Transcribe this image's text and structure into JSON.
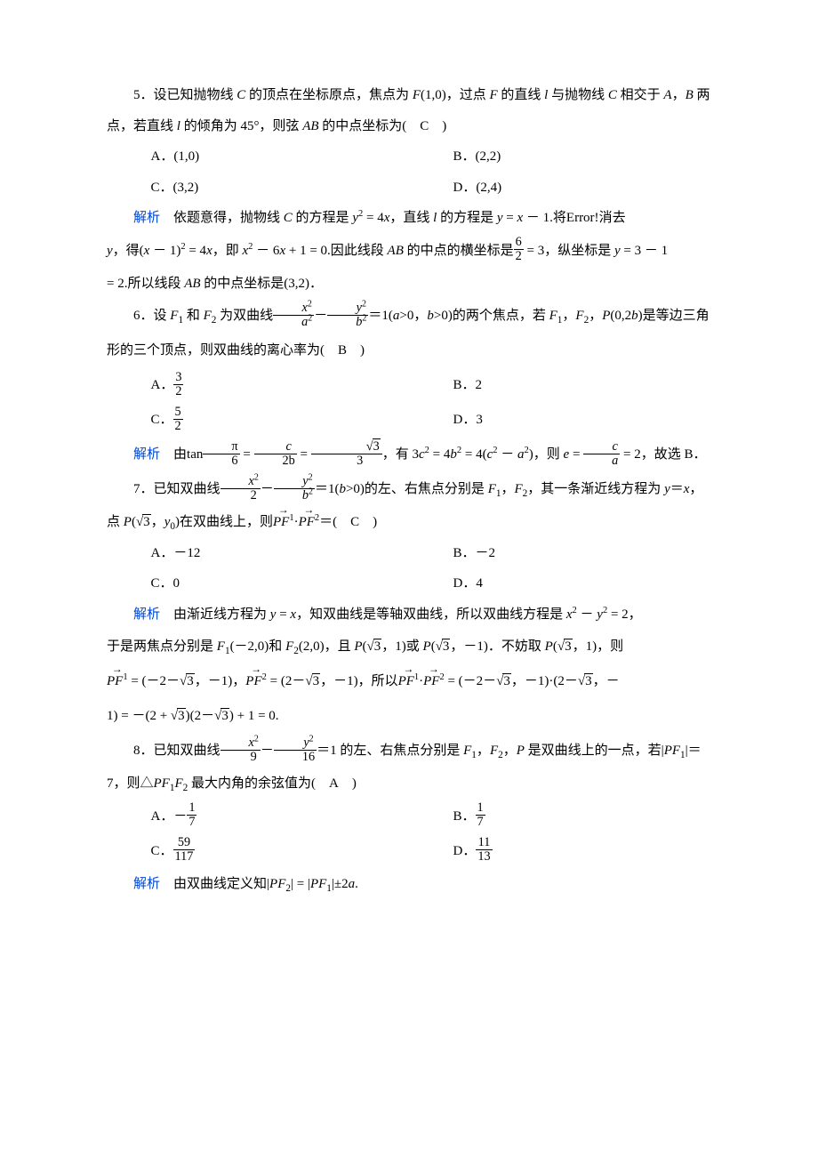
{
  "q5": {
    "number": "5．",
    "stem_a": "设已知抛物线 ",
    "C": "C",
    "stem_b": " 的顶点在坐标原点，焦点为 ",
    "F": "F",
    "stem_c": "(1,0)，过点 ",
    "stem_d": " 的直线 ",
    "l": "l",
    "stem_e": " 与抛物线 ",
    "stem_f": " 相交于 ",
    "A": "A",
    "comma": "，",
    "B": "B",
    "stem_g": " 两点，若直线 ",
    "stem_h": " 的倾角为 45°，则弦 ",
    "AB": "AB",
    "stem_i": " 的中点坐标为(　",
    "answer": "C",
    "stem_j": "　)",
    "opt_a": "A．(1,0)",
    "opt_b": "B．(2,2)",
    "opt_c": "C．(3,2)",
    "opt_d": "D．(2,4)",
    "ana": "解析",
    "ana1_a": "　依题意得，抛物线 ",
    "ana1_b": " 的方程是 ",
    "ana1_c": "y",
    "ana1_d": " = 4",
    "ana1_e": "x",
    "ana1_f": "，直线 ",
    "ana1_g": " 的方程是 ",
    "ana1_h": " = ",
    "ana1_i": " － 1.将",
    "ana1_err": "Error!",
    "ana1_j": "消去",
    "ana2_a": "y",
    "ana2_b": "，得(",
    "ana2_c": " － 1)",
    "ana2_d": " = 4",
    "ana2_e": "，即 ",
    "ana2_f": " － 6",
    "ana2_g": " + 1 = 0.因此线段 ",
    "ana2_h": " 的中点的横坐标是",
    "frac_num": "6",
    "frac_den": "2",
    "ana2_i": " = 3，纵坐标是 ",
    "ana2_j": " = 3 － 1",
    "ana3": "= 2.所以线段 ",
    "ana3_b": " 的中点坐标是(3,2)．"
  },
  "q6": {
    "number": "6．",
    "stem_a": "设 ",
    "F1": "F",
    "stem_b": " 和 ",
    "F2": "F",
    "stem_c": " 为双曲线",
    "hy_x": "x",
    "hy_a": "a",
    "minus": "－",
    "hy_y": "y",
    "hy_b": "b",
    "eq1": "＝1(",
    "a": "a",
    "gt0": ">0，",
    "b": "b",
    "gt0b": ">0)的两个焦点，若 ",
    "stem_d": "，",
    "P": "P",
    "stem_e": "(0,2",
    "stem_f": ")是等边三角形的三个顶点，则双曲线的离心率为(　",
    "answer": "B",
    "stem_g": "　)",
    "opt_a_lbl": "A．",
    "opt_a_num": "3",
    "opt_a_den": "2",
    "opt_b": "B．2",
    "opt_c_lbl": "C．",
    "opt_c_num": "5",
    "opt_c_den": "2",
    "opt_d": "D．3",
    "ana": "解析",
    "ana_a": "　由",
    "tan": "tan",
    "pi": "π",
    "six": "6",
    "eq": " = ",
    "c": "c",
    "two_b": "2b",
    "sqrt3": "3",
    "three": "3",
    "ana_b": "，有 3",
    "ana_c": " = 4",
    "ana_d": " = 4(",
    "ana_e": " － ",
    "ana_f": ")，则 ",
    "e": "e",
    "ana_g": " = ",
    "ana_h": " = 2，故选 B．"
  },
  "q7": {
    "number": "7．",
    "stem_a": "已知双曲线",
    "x": "x",
    "two": "2",
    "y": "y",
    "b": "b",
    "eq1": "＝1(",
    "gt0": ">0)的左、右焦点分别是 ",
    "F": "F",
    "stem_b": "，其一条渐近线方程为 ",
    "eqyx": "＝",
    "stem_c": "，",
    "stem2_a": "点 ",
    "P": "P",
    "stem2_b": "(",
    "sqrt3body": "3",
    "stem2_c": "，",
    "y0": "y",
    "stem2_d": ")在双曲线上，则",
    "PF1": "PF",
    "dot": "·",
    "PF2": "PF",
    "stem2_e": "＝(　",
    "answer": "C",
    "stem2_f": "　)",
    "opt_a": "A．－12",
    "opt_b": "B．－2",
    "opt_c": "C．0",
    "opt_d": "D．4",
    "ana": "解析",
    "ana1_a": "　由渐近线方程为 ",
    "ana1_b": " = ",
    "ana1_c": "，知双曲线是等轴双曲线，所以双曲线方程是 ",
    "ana1_d": " － ",
    "ana1_e": " = 2，",
    "ana2_a": "于是两焦点分别是 ",
    "ana2_b": "(－2,0)和 ",
    "ana2_c": "(2,0)，且 ",
    "ana2_d": "，1)或 ",
    "ana2_e": "，－1)．不妨取 ",
    "ana2_f": "，1)，则",
    "ana3_a": " = (－2－",
    "ana3_b": "，－1)，",
    "ana3_c": " = (2－",
    "ana3_d": "，－1)，所以",
    "ana3_e": " = (－2－",
    "ana3_f": "，－1)·(2－",
    "ana3_g": "，－",
    "ana4_a": "1) = －(2 + ",
    "ana4_b": ")(2－",
    "ana4_c": ") + 1 = 0."
  },
  "q8": {
    "number": "8．",
    "stem_a": "已知双曲线",
    "x": "x",
    "nine": "9",
    "y": "y",
    "sixteen": "16",
    "eq1": "＝1 的左、右焦点分别是 ",
    "F": "F",
    "stem_b": "，",
    "P": "P",
    "stem_c": " 是双曲线上的一点，若|",
    "PF": "PF",
    "stem_d": "|＝",
    "seven": "7，则△",
    "tri": "PF",
    "stem_e": " 最大内角的余弦值为(　",
    "answer": "A",
    "stem_f": "　)",
    "opt_a_lbl": "A．－",
    "opt_a_num": "1",
    "opt_a_den": "7",
    "opt_b_lbl": "B．",
    "opt_b_num": "1",
    "opt_b_den": "7",
    "opt_c_lbl": "C．",
    "opt_c_num": "59",
    "opt_c_den": "117",
    "opt_d_lbl": "D．",
    "opt_d_num": "11",
    "opt_d_den": "13",
    "ana": "解析",
    "ana_a": "　由双曲线定义知|",
    "ana_b": "| = |",
    "ana_c": "|±2",
    "a": "a",
    "ana_d": "."
  }
}
